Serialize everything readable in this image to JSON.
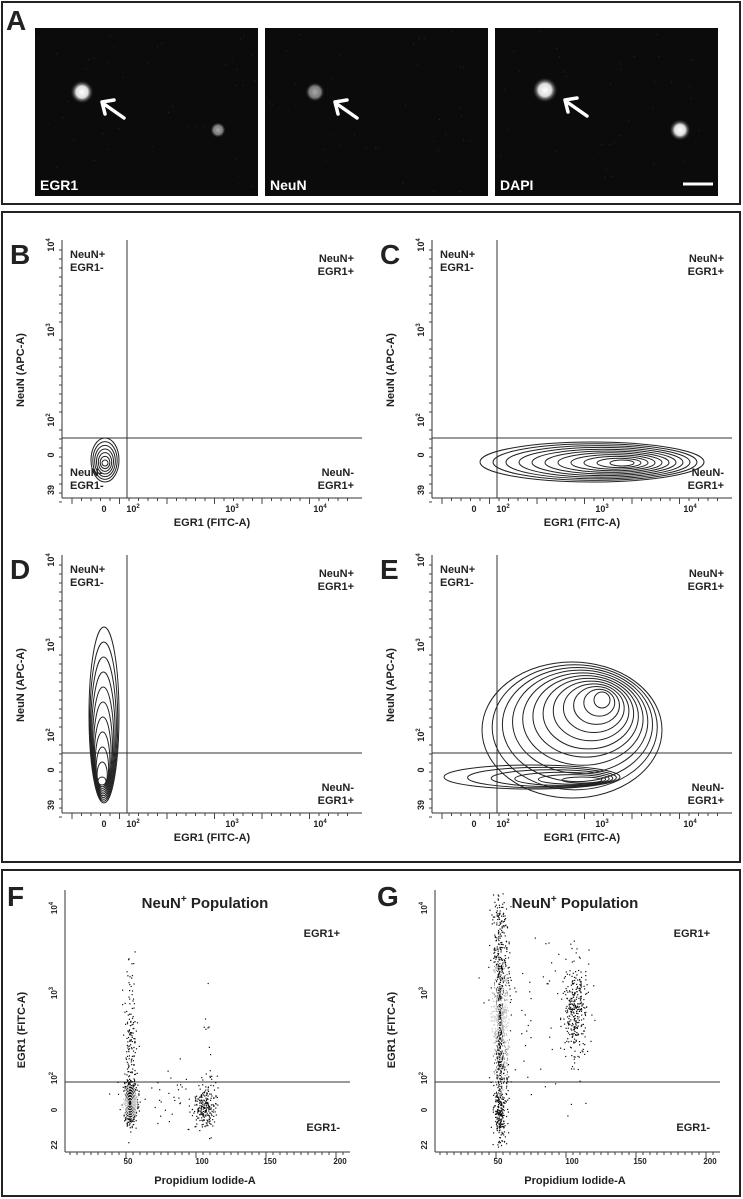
{
  "panel_a": {
    "letter": "A",
    "images": [
      {
        "label": "EGR1"
      },
      {
        "label": "NeuN"
      },
      {
        "label": "DAPI"
      }
    ]
  },
  "contour_plots": [
    {
      "letter": "B",
      "x_label": "EGR1 (FITC-A)",
      "y_label": "NeuN (APC-A)",
      "x_ticks": [
        "0",
        {
          "base": "10",
          "exp": "2"
        },
        {
          "base": "10",
          "exp": "3"
        },
        {
          "base": "10",
          "exp": "4"
        }
      ],
      "y_ticks": [
        "39",
        "0",
        {
          "base": "10",
          "exp": "2"
        },
        {
          "base": "10",
          "exp": "3"
        },
        {
          "base": "10",
          "exp": "4"
        }
      ],
      "quadrants": {
        "upper_left": [
          "NeuN+",
          "EGR1-"
        ],
        "upper_right": [
          "NeuN+",
          "EGR1+"
        ],
        "lower_left": [
          "NeuN-",
          "EGR1-"
        ],
        "lower_right": [
          "NeuN-",
          "EGR1+"
        ]
      }
    },
    {
      "letter": "C",
      "x_label": "EGR1 (FITC-A)",
      "y_label": "NeuN (APC-A)",
      "x_ticks": [
        "0",
        {
          "base": "10",
          "exp": "2"
        },
        {
          "base": "10",
          "exp": "3"
        },
        {
          "base": "10",
          "exp": "4"
        }
      ],
      "y_ticks": [
        "39",
        "0",
        {
          "base": "10",
          "exp": "2"
        },
        {
          "base": "10",
          "exp": "3"
        },
        {
          "base": "10",
          "exp": "4"
        }
      ],
      "quadrants": {
        "upper_left": [
          "NeuN+",
          "EGR1-"
        ],
        "upper_right": [
          "NeuN+",
          "EGR1+"
        ],
        "lower_right": [
          "NeuN-",
          "EGR1+"
        ]
      }
    },
    {
      "letter": "D",
      "x_label": "EGR1 (FITC-A)",
      "y_label": "NeuN (APC-A)",
      "x_ticks": [
        "0",
        {
          "base": "10",
          "exp": "2"
        },
        {
          "base": "10",
          "exp": "3"
        },
        {
          "base": "10",
          "exp": "4"
        }
      ],
      "y_ticks": [
        "39",
        "0",
        {
          "base": "10",
          "exp": "2"
        },
        {
          "base": "10",
          "exp": "3"
        },
        {
          "base": "10",
          "exp": "4"
        }
      ],
      "quadrants": {
        "upper_left": [
          "NeuN+",
          "EGR1-"
        ],
        "upper_right": [
          "NeuN+",
          "EGR1+"
        ],
        "lower_right": [
          "NeuN-",
          "EGR1+"
        ]
      }
    },
    {
      "letter": "E",
      "x_label": "EGR1 (FITC-A)",
      "y_label": "NeuN (APC-A)",
      "x_ticks": [
        "0",
        {
          "base": "10",
          "exp": "2"
        },
        {
          "base": "10",
          "exp": "3"
        },
        {
          "base": "10",
          "exp": "4"
        }
      ],
      "y_ticks": [
        "39",
        "0",
        {
          "base": "10",
          "exp": "2"
        },
        {
          "base": "10",
          "exp": "3"
        },
        {
          "base": "10",
          "exp": "4"
        }
      ],
      "quadrants": {
        "upper_left": [
          "NeuN+",
          "EGR1-"
        ],
        "upper_right": [
          "NeuN+",
          "EGR1+"
        ],
        "lower_right": [
          "NeuN-",
          "EGR1+"
        ]
      }
    }
  ],
  "scatter_plots": [
    {
      "letter": "F",
      "title": {
        "text": "NeuN",
        "sup": "+",
        "rest": " Population"
      },
      "x_label": "Propidium Iodide-A",
      "y_label": "EGR1 (FITC-A)",
      "x_ticks": [
        "50",
        "100",
        "150",
        "200"
      ],
      "y_ticks": [
        "22",
        "0",
        {
          "base": "10",
          "exp": "2"
        },
        {
          "base": "10",
          "exp": "3"
        },
        {
          "base": "10",
          "exp": "4"
        }
      ],
      "quadrants": {
        "upper": "EGR1+",
        "lower": "EGR1-"
      }
    },
    {
      "letter": "G",
      "title": {
        "text": "NeuN",
        "sup": "+",
        "rest": " Population"
      },
      "x_label": "Propidium Iodide-A",
      "y_label": "EGR1 (FITC-A)",
      "x_ticks": [
        "50",
        "100",
        "150",
        "200"
      ],
      "y_ticks": [
        "22",
        "0",
        {
          "base": "10",
          "exp": "2"
        },
        {
          "base": "10",
          "exp": "3"
        },
        {
          "base": "10",
          "exp": "4"
        }
      ],
      "quadrants": {
        "upper": "EGR1+",
        "lower": "EGR1-"
      }
    }
  ]
}
